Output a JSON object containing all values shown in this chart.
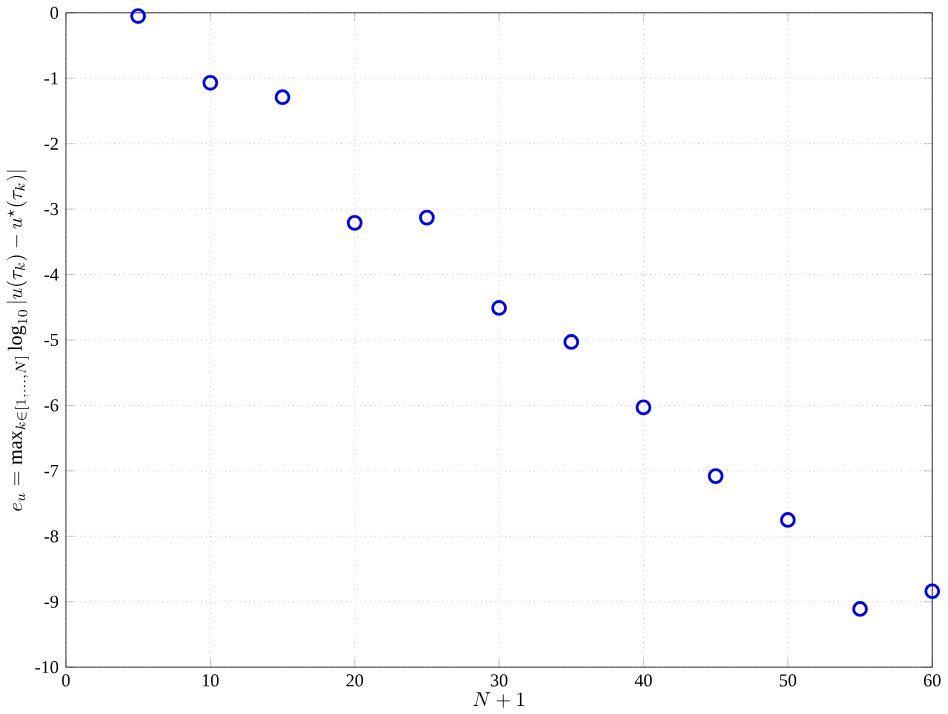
{
  "chart_data": {
    "type": "scatter",
    "xlabel": "N+1",
    "ylabel": "e_u = \\max_{k\\in[1,\\ldots,N]} \\log_{10}|u(\\tau_k) - u^{\\star}(\\tau_k)|",
    "x": [
      5,
      10,
      15,
      20,
      25,
      30,
      35,
      40,
      45,
      50,
      55,
      60
    ],
    "values": [
      -0.05,
      -1.07,
      -1.29,
      -3.21,
      -3.13,
      -4.51,
      -5.03,
      -6.03,
      -7.08,
      -7.75,
      -9.11,
      -8.84
    ],
    "color": "#0000ff",
    "marker": "circle",
    "grid": true,
    "xlim": [
      0,
      60
    ],
    "xticks": [
      0,
      10,
      20,
      30,
      40,
      50,
      60
    ],
    "ylim": [
      -10,
      0
    ],
    "yticks": [
      -10,
      -9,
      -8,
      -7,
      -6,
      -5,
      -4,
      -3,
      -2,
      -1,
      0
    ]
  }
}
